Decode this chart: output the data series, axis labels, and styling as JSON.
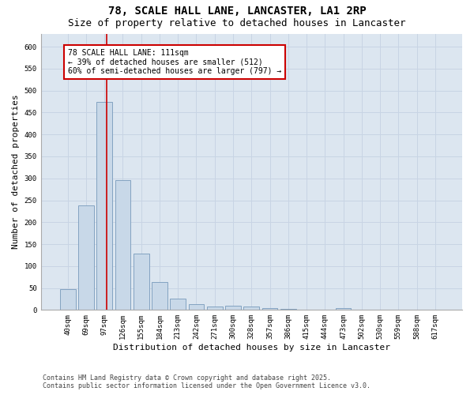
{
  "title1": "78, SCALE HALL LANE, LANCASTER, LA1 2RP",
  "title2": "Size of property relative to detached houses in Lancaster",
  "xlabel": "Distribution of detached houses by size in Lancaster",
  "ylabel": "Number of detached properties",
  "categories": [
    "40sqm",
    "69sqm",
    "97sqm",
    "126sqm",
    "155sqm",
    "184sqm",
    "213sqm",
    "242sqm",
    "271sqm",
    "300sqm",
    "328sqm",
    "357sqm",
    "386sqm",
    "415sqm",
    "444sqm",
    "473sqm",
    "502sqm",
    "530sqm",
    "559sqm",
    "588sqm",
    "617sqm"
  ],
  "values": [
    48,
    238,
    474,
    296,
    128,
    64,
    26,
    13,
    8,
    9,
    7,
    5,
    2,
    1,
    1,
    4,
    1,
    0,
    1,
    0,
    1
  ],
  "bar_color": "#c8d8e8",
  "bar_edge_color": "#7799bb",
  "red_line_x": 2,
  "annotation_text": "78 SCALE HALL LANE: 111sqm\n← 39% of detached houses are smaller (512)\n60% of semi-detached houses are larger (797) →",
  "annotation_box_color": "#ffffff",
  "annotation_box_edge": "#cc0000",
  "red_line_color": "#cc0000",
  "grid_color": "#c8d4e4",
  "bg_color": "#dce6f0",
  "ylim": [
    0,
    630
  ],
  "yticks": [
    0,
    50,
    100,
    150,
    200,
    250,
    300,
    350,
    400,
    450,
    500,
    550,
    600
  ],
  "footer1": "Contains HM Land Registry data © Crown copyright and database right 2025.",
  "footer2": "Contains public sector information licensed under the Open Government Licence v3.0.",
  "title_fontsize": 10,
  "subtitle_fontsize": 9,
  "tick_fontsize": 6.5,
  "label_fontsize": 8,
  "annotation_fontsize": 7,
  "footer_fontsize": 6
}
